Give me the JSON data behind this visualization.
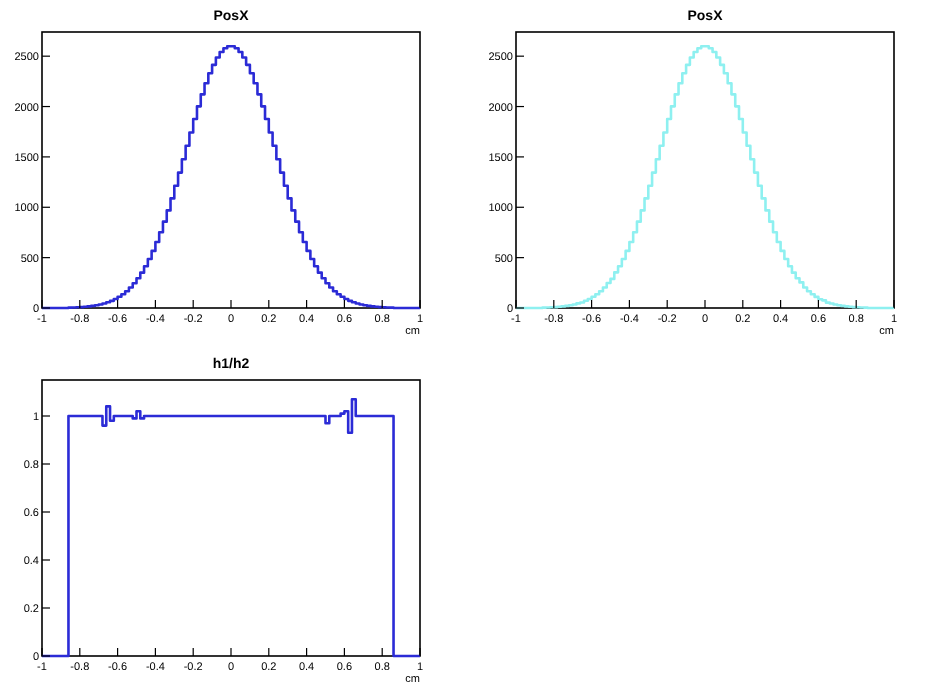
{
  "chart_data": [
    {
      "type": "histogram",
      "title": "PosX",
      "xlabel": "cm",
      "color": "#2b2bd6",
      "xlim": [
        -1,
        1
      ],
      "xticks": [
        -1,
        -0.8,
        -0.6,
        -0.4,
        -0.2,
        0,
        0.2,
        0.4,
        0.6,
        0.8,
        1
      ],
      "ylim": [
        0,
        2740
      ],
      "yticks": [
        0,
        500,
        1000,
        1500,
        2000,
        2500
      ],
      "bins": [
        -1,
        -0.98,
        -0.96,
        -0.94,
        -0.92,
        -0.9,
        -0.88,
        -0.86,
        -0.84,
        -0.82,
        -0.8,
        -0.78,
        -0.76,
        -0.74,
        -0.72,
        -0.7,
        -0.68,
        -0.66,
        -0.64,
        -0.62,
        -0.6,
        -0.58,
        -0.56,
        -0.54,
        -0.52,
        -0.5,
        -0.48,
        -0.46,
        -0.44,
        -0.42,
        -0.4,
        -0.38,
        -0.36,
        -0.34,
        -0.32,
        -0.3,
        -0.28,
        -0.26,
        -0.24,
        -0.22,
        -0.2,
        -0.18,
        -0.16,
        -0.14,
        -0.12,
        -0.1,
        -0.08,
        -0.06,
        -0.04,
        -0.02,
        0,
        0.02,
        0.04,
        0.06,
        0.08,
        0.1,
        0.12,
        0.14,
        0.16,
        0.18,
        0.2,
        0.22,
        0.24,
        0.26,
        0.28,
        0.3,
        0.32,
        0.34,
        0.36,
        0.38,
        0.4,
        0.42,
        0.44,
        0.46,
        0.48,
        0.5,
        0.52,
        0.54,
        0.56,
        0.58,
        0.6,
        0.62,
        0.64,
        0.66,
        0.68,
        0.7,
        0.72,
        0.74,
        0.76,
        0.78,
        0.8,
        0.82,
        0.84,
        0.86,
        0.88,
        0.9,
        0.92,
        0.94,
        0.96,
        0.98,
        1
      ],
      "values": [
        0,
        0,
        0,
        0,
        0,
        0,
        0,
        4,
        5,
        7,
        9,
        12,
        16,
        21,
        27,
        35,
        44,
        57,
        71,
        89,
        111,
        137,
        167,
        204,
        246,
        295,
        351,
        415,
        487,
        567,
        655,
        752,
        857,
        969,
        1088,
        1213,
        1344,
        1476,
        1610,
        1743,
        1876,
        2002,
        2121,
        2231,
        2330,
        2414,
        2487,
        2542,
        2579,
        2598,
        2598,
        2579,
        2542,
        2487,
        2414,
        2330,
        2231,
        2121,
        2002,
        1876,
        1743,
        1610,
        1476,
        1344,
        1213,
        1088,
        969,
        857,
        752,
        655,
        567,
        487,
        415,
        351,
        295,
        246,
        204,
        167,
        137,
        111,
        89,
        71,
        57,
        44,
        35,
        27,
        21,
        16,
        12,
        9,
        7,
        5,
        4,
        0,
        0,
        0,
        0,
        0,
        0,
        0
      ]
    },
    {
      "type": "histogram",
      "title": "PosX",
      "xlabel": "cm",
      "color": "#8ef0f0",
      "xlim": [
        -1,
        1
      ],
      "xticks": [
        -1,
        -0.8,
        -0.6,
        -0.4,
        -0.2,
        0,
        0.2,
        0.4,
        0.6,
        0.8,
        1
      ],
      "ylim": [
        0,
        2740
      ],
      "yticks": [
        0,
        500,
        1000,
        1500,
        2000,
        2500
      ],
      "bins": [
        -1,
        -0.98,
        -0.96,
        -0.94,
        -0.92,
        -0.9,
        -0.88,
        -0.86,
        -0.84,
        -0.82,
        -0.8,
        -0.78,
        -0.76,
        -0.74,
        -0.72,
        -0.7,
        -0.68,
        -0.66,
        -0.64,
        -0.62,
        -0.6,
        -0.58,
        -0.56,
        -0.54,
        -0.52,
        -0.5,
        -0.48,
        -0.46,
        -0.44,
        -0.42,
        -0.4,
        -0.38,
        -0.36,
        -0.34,
        -0.32,
        -0.3,
        -0.28,
        -0.26,
        -0.24,
        -0.22,
        -0.2,
        -0.18,
        -0.16,
        -0.14,
        -0.12,
        -0.1,
        -0.08,
        -0.06,
        -0.04,
        -0.02,
        0,
        0.02,
        0.04,
        0.06,
        0.08,
        0.1,
        0.12,
        0.14,
        0.16,
        0.18,
        0.2,
        0.22,
        0.24,
        0.26,
        0.28,
        0.3,
        0.32,
        0.34,
        0.36,
        0.38,
        0.4,
        0.42,
        0.44,
        0.46,
        0.48,
        0.5,
        0.52,
        0.54,
        0.56,
        0.58,
        0.6,
        0.62,
        0.64,
        0.66,
        0.68,
        0.7,
        0.72,
        0.74,
        0.76,
        0.78,
        0.8,
        0.82,
        0.84,
        0.86,
        0.88,
        0.9,
        0.92,
        0.94,
        0.96,
        0.98,
        1
      ],
      "values": [
        0,
        0,
        0,
        0,
        0,
        0,
        0,
        4,
        5,
        7,
        9,
        12,
        16,
        21,
        27,
        35,
        46,
        55,
        72,
        89,
        111,
        137,
        167,
        204,
        248,
        289,
        354,
        415,
        487,
        567,
        655,
        752,
        857,
        969,
        1088,
        1213,
        1344,
        1476,
        1610,
        1743,
        1876,
        2002,
        2121,
        2231,
        2330,
        2414,
        2487,
        2542,
        2579,
        2598,
        2598,
        2579,
        2542,
        2487,
        2414,
        2330,
        2231,
        2121,
        2002,
        1876,
        1743,
        1610,
        1476,
        1344,
        1213,
        1088,
        969,
        857,
        752,
        655,
        567,
        487,
        415,
        351,
        295,
        254,
        204,
        167,
        137,
        110,
        87,
        76,
        53,
        44,
        35,
        27,
        21,
        16,
        12,
        9,
        7,
        5,
        4,
        0,
        0,
        0,
        0,
        0,
        0,
        0
      ]
    },
    {
      "type": "histogram",
      "title": "h1/h2",
      "xlabel": "cm",
      "color": "#2b2bd6",
      "xlim": [
        -1,
        1
      ],
      "xticks": [
        -1,
        -0.8,
        -0.6,
        -0.4,
        -0.2,
        0,
        0.2,
        0.4,
        0.6,
        0.8,
        1
      ],
      "ylim": [
        0,
        1.15
      ],
      "yticks": [
        0,
        0.2,
        0.4,
        0.6,
        0.8,
        1
      ],
      "bins": [
        -1,
        -0.98,
        -0.96,
        -0.94,
        -0.92,
        -0.9,
        -0.88,
        -0.86,
        -0.84,
        -0.82,
        -0.8,
        -0.78,
        -0.76,
        -0.74,
        -0.72,
        -0.7,
        -0.68,
        -0.66,
        -0.64,
        -0.62,
        -0.6,
        -0.58,
        -0.56,
        -0.54,
        -0.52,
        -0.5,
        -0.48,
        -0.46,
        -0.44,
        -0.42,
        -0.4,
        -0.38,
        -0.36,
        -0.34,
        -0.32,
        -0.3,
        -0.28,
        -0.26,
        -0.24,
        -0.22,
        -0.2,
        -0.18,
        -0.16,
        -0.14,
        -0.12,
        -0.1,
        -0.08,
        -0.06,
        -0.04,
        -0.02,
        0,
        0.02,
        0.04,
        0.06,
        0.08,
        0.1,
        0.12,
        0.14,
        0.16,
        0.18,
        0.2,
        0.22,
        0.24,
        0.26,
        0.28,
        0.3,
        0.32,
        0.34,
        0.36,
        0.38,
        0.4,
        0.42,
        0.44,
        0.46,
        0.48,
        0.5,
        0.52,
        0.54,
        0.56,
        0.58,
        0.6,
        0.62,
        0.64,
        0.66,
        0.68,
        0.7,
        0.72,
        0.74,
        0.76,
        0.78,
        0.8,
        0.82,
        0.84,
        0.86,
        0.88,
        0.9,
        0.92,
        0.94,
        0.96,
        0.98,
        1
      ],
      "values": [
        0,
        0,
        0,
        0,
        0,
        0,
        0,
        1,
        1,
        1,
        1,
        1,
        1,
        1,
        1,
        1,
        0.96,
        1.04,
        0.98,
        1,
        1,
        1,
        1,
        1,
        0.99,
        1.02,
        0.99,
        1,
        1,
        1,
        1,
        1,
        1,
        1,
        1,
        1,
        1,
        1,
        1,
        1,
        1,
        1,
        1,
        1,
        1,
        1,
        1,
        1,
        1,
        1,
        1,
        1,
        1,
        1,
        1,
        1,
        1,
        1,
        1,
        1,
        1,
        1,
        1,
        1,
        1,
        1,
        1,
        1,
        1,
        1,
        1,
        1,
        1,
        1,
        1,
        0.97,
        1,
        1,
        1,
        1.01,
        1.02,
        0.93,
        1.07,
        1,
        1,
        1,
        1,
        1,
        1,
        1,
        1,
        1,
        1,
        0,
        0,
        0,
        0,
        0,
        0,
        0
      ]
    }
  ]
}
